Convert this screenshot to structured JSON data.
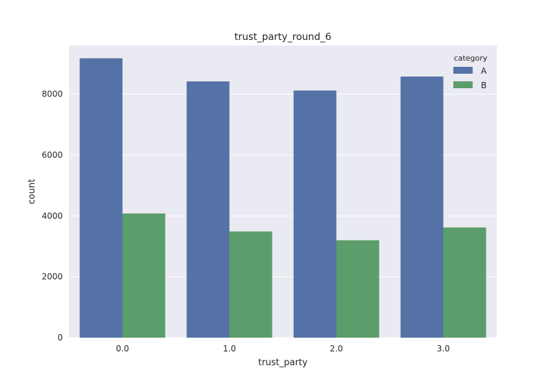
{
  "chart_data": {
    "type": "bar",
    "title": "trust_party_round_6",
    "xlabel": "trust_party",
    "ylabel": "count",
    "categories": [
      "0.0",
      "1.0",
      "2.0",
      "3.0"
    ],
    "series": [
      {
        "name": "A",
        "values": [
          9180,
          8420,
          8120,
          8580
        ],
        "color": "#5572a6"
      },
      {
        "name": "B",
        "values": [
          4080,
          3490,
          3200,
          3620
        ],
        "color": "#5b9e6b"
      }
    ],
    "ylim": [
      0,
      9600
    ],
    "yticks": [
      0,
      2000,
      4000,
      6000,
      8000
    ],
    "legend": {
      "title": "category",
      "placement": "top-right"
    },
    "grid": true,
    "background": "#eaeaf2"
  }
}
